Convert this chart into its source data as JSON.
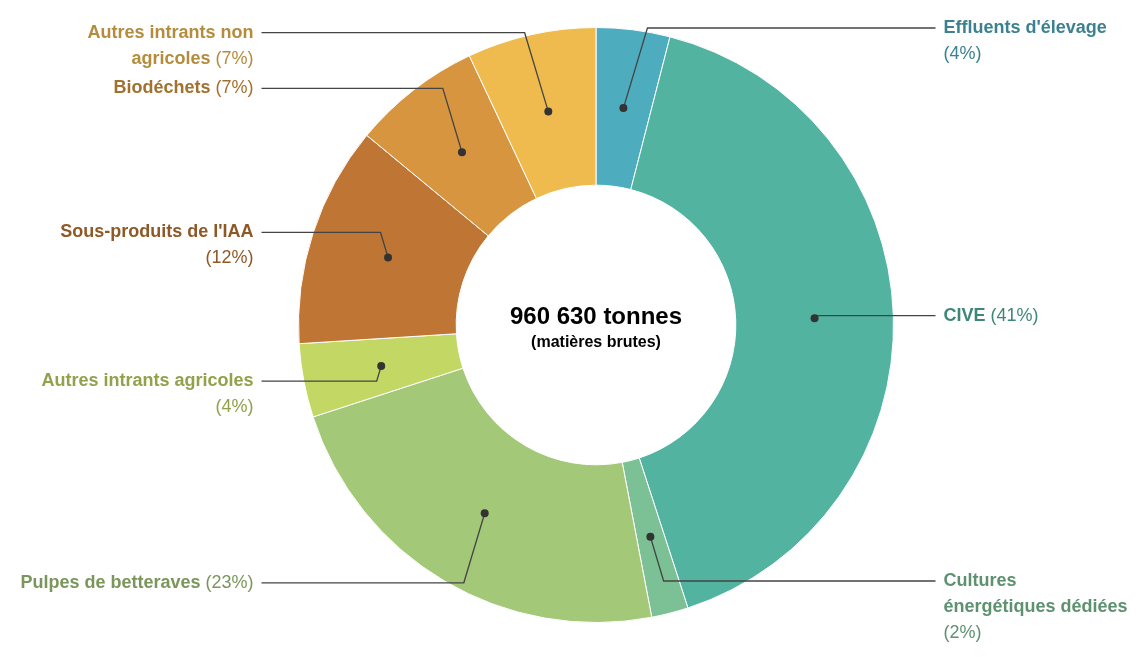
{
  "chart_data": {
    "type": "donut",
    "title": "960 630 tonnes",
    "subtitle": "(matières brutes)",
    "categories": [
      "Effluents d'élevage",
      "CIVE",
      "Cultures énergétiques dédiées",
      "Pulpes de betteraves",
      "Autres intrants agricoles",
      "Sous-produits de l'IAA",
      "Biodéchets",
      "Autres intrants non agricoles"
    ],
    "values": [
      4,
      41,
      2,
      23,
      4,
      12,
      7,
      7
    ],
    "colors": [
      "#4eacbf",
      "#52b4a0",
      "#7cc195",
      "#a3c878",
      "#c3d764",
      "#bf7634",
      "#d8953f",
      "#f0bb4e"
    ],
    "value_labels": [
      "(4%)",
      "(41%)",
      "(2%)",
      "(23%)",
      "(4%)",
      "(12%)",
      "(7%)",
      "(7%)"
    ],
    "legend": false
  }
}
